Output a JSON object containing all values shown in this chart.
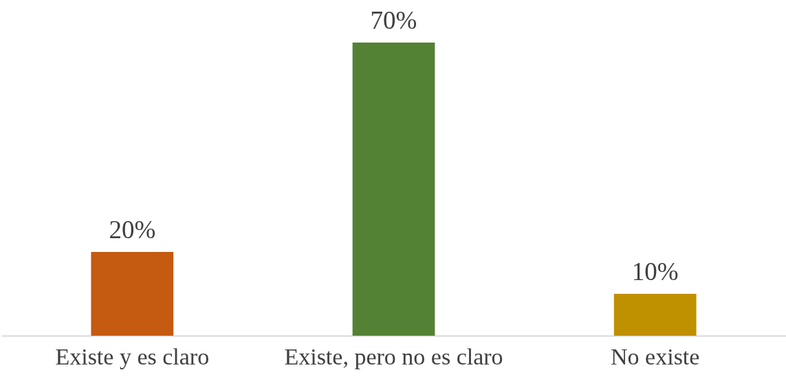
{
  "chart_data": {
    "type": "bar",
    "categories": [
      "Existe y es claro",
      "Existe, pero no es claro",
      "No existe"
    ],
    "values": [
      20,
      70,
      10
    ],
    "colors": [
      "#c55a11",
      "#548235",
      "#bf9000"
    ],
    "value_labels": [
      "20%",
      "70%",
      "10%"
    ]
  }
}
